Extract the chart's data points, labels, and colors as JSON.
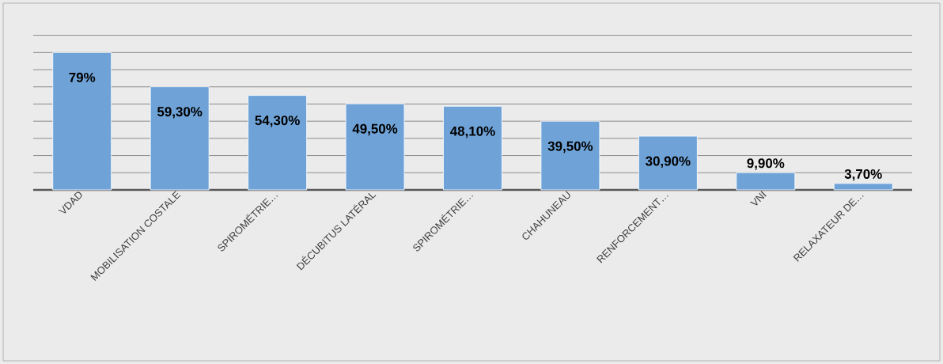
{
  "chart_data": {
    "type": "bar",
    "categories": [
      "VDAD",
      "MOBILISATION COSTALE",
      "SPIROMÉTRIE…",
      "DÉCUBITUS LATÉRAL",
      "SPIROMÉTRIE…",
      "CHAHUNEAU",
      "RENFORCEMENT…",
      "VNI",
      "RELAXATEUR DE…"
    ],
    "values": [
      79,
      59.3,
      54.3,
      49.5,
      48.1,
      39.5,
      30.9,
      9.9,
      3.7
    ],
    "value_labels": [
      "79%",
      "59,30%",
      "54,30%",
      "49,50%",
      "48,10%",
      "39,50%",
      "30,90%",
      "9,90%",
      "3,70%"
    ],
    "color": "#6fa3d8",
    "grid": "y"
  }
}
